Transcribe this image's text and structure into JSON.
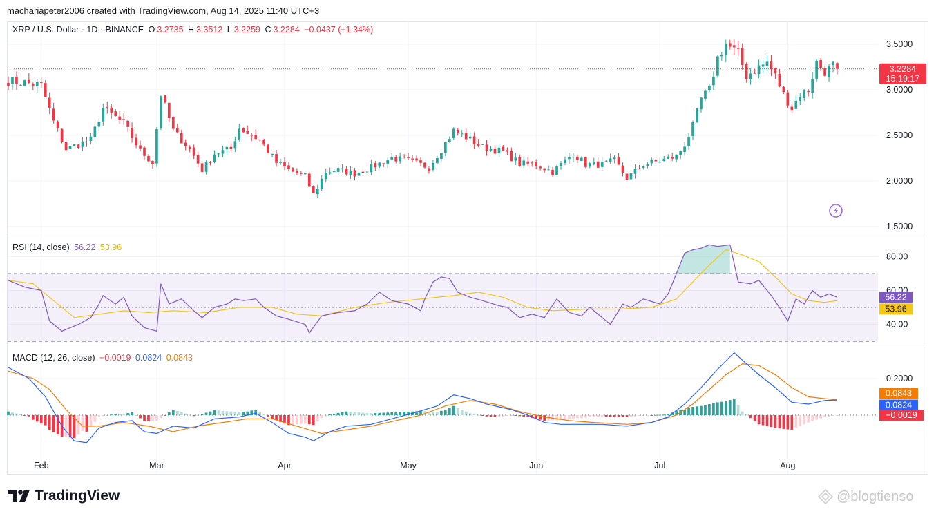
{
  "header": {
    "attribution": "machariapeter2006 created with TradingView.com, Aug 14, 2025 11:40 UTC+3"
  },
  "footer": {
    "brand": "TradingView",
    "watermark": "@blogtienso"
  },
  "colors": {
    "up": "#26a69a",
    "down": "#f23645",
    "rsi": "#7e57c2",
    "rsi_ma": "#f5c518",
    "macd": "#2962ff",
    "signal": "#f57c00"
  },
  "chart_data": [
    {
      "type": "candlestick",
      "legend": {
        "symbol": "XRP / U.S. Dollar · 1D · BINANCE",
        "o_label": "O",
        "o_value": "3.2735",
        "h_label": "H",
        "h_value": "3.3512",
        "l_label": "L",
        "l_value": "3.2259",
        "c_label": "C",
        "c_value": "3.2284",
        "change": "−0.0437 (−1.34%)"
      },
      "last_price_label": "3.2284",
      "countdown_label": "15:19:17",
      "last_price": 3.2284,
      "ylim": [
        1.4,
        3.75
      ],
      "y_ticks": [
        {
          "value": 1.5,
          "label": "1.5000"
        },
        {
          "value": 2.0,
          "label": "2.0000"
        },
        {
          "value": 2.5,
          "label": "2.5000"
        },
        {
          "value": 3.0,
          "label": "3.0000"
        },
        {
          "value": 3.5,
          "label": "3.5000"
        }
      ],
      "x_labels": [
        {
          "day": 8,
          "label": "Feb"
        },
        {
          "day": 36,
          "label": "Mar"
        },
        {
          "day": 67,
          "label": "Apr"
        },
        {
          "day": 97,
          "label": "May"
        },
        {
          "day": 128,
          "label": "Jun"
        },
        {
          "day": 158,
          "label": "Jul"
        },
        {
          "day": 189,
          "label": "Aug"
        }
      ],
      "key_closes": [
        [
          0,
          3.1
        ],
        [
          4,
          3.08
        ],
        [
          8,
          3.05
        ],
        [
          11,
          2.65
        ],
        [
          14,
          2.35
        ],
        [
          20,
          2.45
        ],
        [
          23,
          2.8
        ],
        [
          28,
          2.63
        ],
        [
          32,
          2.33
        ],
        [
          35,
          2.2
        ],
        [
          37,
          2.95
        ],
        [
          40,
          2.55
        ],
        [
          44,
          2.35
        ],
        [
          47,
          2.12
        ],
        [
          50,
          2.3
        ],
        [
          54,
          2.35
        ],
        [
          56,
          2.58
        ],
        [
          61,
          2.45
        ],
        [
          65,
          2.2
        ],
        [
          69,
          2.1
        ],
        [
          72,
          2.05
        ],
        [
          74,
          1.85
        ],
        [
          77,
          2.1
        ],
        [
          80,
          2.12
        ],
        [
          84,
          2.08
        ],
        [
          88,
          2.15
        ],
        [
          93,
          2.25
        ],
        [
          97,
          2.22
        ],
        [
          102,
          2.15
        ],
        [
          105,
          2.35
        ],
        [
          108,
          2.55
        ],
        [
          111,
          2.48
        ],
        [
          115,
          2.37
        ],
        [
          120,
          2.32
        ],
        [
          124,
          2.19
        ],
        [
          128,
          2.18
        ],
        [
          132,
          2.1
        ],
        [
          137,
          2.3
        ],
        [
          140,
          2.18
        ],
        [
          144,
          2.18
        ],
        [
          147,
          2.22
        ],
        [
          150,
          2.03
        ],
        [
          154,
          2.18
        ],
        [
          158,
          2.22
        ],
        [
          162,
          2.27
        ],
        [
          164,
          2.4
        ],
        [
          166,
          2.6
        ],
        [
          168,
          2.9
        ],
        [
          170,
          3.0
        ],
        [
          172,
          3.35
        ],
        [
          174,
          3.5
        ],
        [
          177,
          3.4
        ],
        [
          179,
          3.15
        ],
        [
          182,
          3.25
        ],
        [
          184,
          3.3
        ],
        [
          186,
          3.15
        ],
        [
          188,
          2.95
        ],
        [
          190,
          2.8
        ],
        [
          192,
          2.95
        ],
        [
          194,
          3.0
        ],
        [
          196,
          3.3
        ],
        [
          198,
          3.2
        ],
        [
          200,
          3.27
        ],
        [
          201,
          3.23
        ]
      ]
    },
    {
      "type": "line",
      "legend": {
        "title": "RSI (14, close)",
        "rsi_value": "56.22",
        "ma_value": "53.96"
      },
      "rsi_label": "56.22",
      "ma_label": "53.96",
      "ylim": [
        28,
        92
      ],
      "bands": {
        "upper": 70,
        "middle": 50,
        "lower": 30
      },
      "y_ticks": [
        {
          "value": 40,
          "label": "40.00"
        },
        {
          "value": 60,
          "label": "60.00"
        },
        {
          "value": 80,
          "label": "80.00"
        }
      ],
      "series": [
        {
          "key": "rsi",
          "points": [
            [
              0,
              66
            ],
            [
              4,
              62
            ],
            [
              8,
              60
            ],
            [
              10,
              42
            ],
            [
              13,
              36
            ],
            [
              17,
              40
            ],
            [
              20,
              44
            ],
            [
              22,
              52
            ],
            [
              23,
              57
            ],
            [
              26,
              52
            ],
            [
              28,
              56
            ],
            [
              30,
              45
            ],
            [
              33,
              38
            ],
            [
              36,
              36
            ],
            [
              37,
              64
            ],
            [
              39,
              52
            ],
            [
              42,
              55
            ],
            [
              45,
              48
            ],
            [
              47,
              44
            ],
            [
              50,
              50
            ],
            [
              53,
              52
            ],
            [
              55,
              55
            ],
            [
              57,
              54
            ],
            [
              60,
              55
            ],
            [
              62,
              50
            ],
            [
              65,
              45
            ],
            [
              68,
              43
            ],
            [
              72,
              40
            ],
            [
              73,
              35
            ],
            [
              76,
              45
            ],
            [
              80,
              47
            ],
            [
              84,
              48
            ],
            [
              87,
              52
            ],
            [
              90,
              59
            ],
            [
              93,
              54
            ],
            [
              97,
              52
            ],
            [
              100,
              48
            ],
            [
              101,
              55
            ],
            [
              103,
              65
            ],
            [
              105,
              68
            ],
            [
              107,
              67
            ],
            [
              109,
              59
            ],
            [
              112,
              56
            ],
            [
              115,
              54
            ],
            [
              119,
              51
            ],
            [
              121,
              50
            ],
            [
              124,
              44
            ],
            [
              127,
              46
            ],
            [
              130,
              44
            ],
            [
              133,
              55
            ],
            [
              136,
              47
            ],
            [
              139,
              45
            ],
            [
              141,
              50
            ],
            [
              143,
              46
            ],
            [
              146,
              40
            ],
            [
              149,
              52
            ],
            [
              151,
              50
            ],
            [
              154,
              55
            ],
            [
              158,
              52
            ],
            [
              160,
              58
            ],
            [
              162,
              70
            ],
            [
              164,
              82
            ],
            [
              166,
              84
            ],
            [
              168,
              85
            ],
            [
              170,
              87
            ],
            [
              172,
              86
            ],
            [
              175,
              87
            ],
            [
              177,
              65
            ],
            [
              180,
              64
            ],
            [
              182,
              66
            ],
            [
              185,
              57
            ],
            [
              187,
              50
            ],
            [
              189,
              42
            ],
            [
              191,
              55
            ],
            [
              193,
              52
            ],
            [
              195,
              60
            ],
            [
              197,
              56
            ],
            [
              199,
              58
            ],
            [
              201,
              56
            ]
          ]
        },
        {
          "key": "rsi_ma",
          "points": [
            [
              0,
              66
            ],
            [
              6,
              64
            ],
            [
              10,
              56
            ],
            [
              16,
              44
            ],
            [
              22,
              46
            ],
            [
              28,
              48
            ],
            [
              34,
              47
            ],
            [
              40,
              48
            ],
            [
              48,
              47
            ],
            [
              56,
              50
            ],
            [
              64,
              50
            ],
            [
              70,
              46
            ],
            [
              76,
              45
            ],
            [
              84,
              50
            ],
            [
              92,
              53
            ],
            [
              100,
              55
            ],
            [
              108,
              57
            ],
            [
              114,
              59
            ],
            [
              120,
              56
            ],
            [
              126,
              50
            ],
            [
              132,
              48
            ],
            [
              140,
              49
            ],
            [
              148,
              49
            ],
            [
              156,
              50
            ],
            [
              162,
              55
            ],
            [
              166,
              65
            ],
            [
              170,
              75
            ],
            [
              174,
              84
            ],
            [
              178,
              81
            ],
            [
              182,
              77
            ],
            [
              186,
              68
            ],
            [
              190,
              58
            ],
            [
              194,
              54
            ],
            [
              198,
              53
            ],
            [
              201,
              54
            ]
          ]
        }
      ]
    },
    {
      "type": "line",
      "legend": {
        "title": "MACD (12, 26, close)",
        "hist_value": "−0.0019",
        "macd_value": "0.0824",
        "signal_value": "0.0843"
      },
      "signal_label": "0.0843",
      "macd_label": "0.0824",
      "hist_label": "−0.0019",
      "ylim": [
        -0.32,
        0.38
      ],
      "y_ticks": [
        {
          "value": 0.2,
          "label": "0.2000"
        }
      ],
      "series": [
        {
          "key": "macd",
          "points": [
            [
              0,
              0.26
            ],
            [
              5,
              0.2
            ],
            [
              9,
              0.1
            ],
            [
              13,
              -0.06
            ],
            [
              16,
              -0.14
            ],
            [
              19,
              -0.15
            ],
            [
              22,
              -0.07
            ],
            [
              26,
              -0.04
            ],
            [
              30,
              -0.03
            ],
            [
              33,
              -0.09
            ],
            [
              36,
              -0.1
            ],
            [
              40,
              -0.06
            ],
            [
              45,
              -0.07
            ],
            [
              50,
              -0.02
            ],
            [
              56,
              -0.01
            ],
            [
              60,
              0.01
            ],
            [
              64,
              -0.04
            ],
            [
              68,
              -0.1
            ],
            [
              72,
              -0.12
            ],
            [
              74,
              -0.14
            ],
            [
              78,
              -0.09
            ],
            [
              82,
              -0.06
            ],
            [
              88,
              -0.05
            ],
            [
              93,
              -0.02
            ],
            [
              98,
              0.01
            ],
            [
              104,
              0.05
            ],
            [
              108,
              0.11
            ],
            [
              112,
              0.09
            ],
            [
              116,
              0.06
            ],
            [
              122,
              0.03
            ],
            [
              126,
              0.0
            ],
            [
              130,
              -0.04
            ],
            [
              134,
              -0.05
            ],
            [
              138,
              -0.05
            ],
            [
              144,
              -0.05
            ],
            [
              150,
              -0.06
            ],
            [
              156,
              -0.04
            ],
            [
              160,
              -0.01
            ],
            [
              164,
              0.06
            ],
            [
              168,
              0.15
            ],
            [
              172,
              0.25
            ],
            [
              176,
              0.34
            ],
            [
              178,
              0.3
            ],
            [
              182,
              0.22
            ],
            [
              186,
              0.15
            ],
            [
              190,
              0.07
            ],
            [
              194,
              0.06
            ],
            [
              198,
              0.08
            ],
            [
              201,
              0.0824
            ]
          ]
        },
        {
          "key": "signal",
          "points": [
            [
              0,
              0.24
            ],
            [
              6,
              0.2
            ],
            [
              10,
              0.14
            ],
            [
              14,
              0.03
            ],
            [
              18,
              -0.06
            ],
            [
              22,
              -0.06
            ],
            [
              28,
              -0.04
            ],
            [
              34,
              -0.06
            ],
            [
              40,
              -0.09
            ],
            [
              46,
              -0.06
            ],
            [
              52,
              -0.04
            ],
            [
              58,
              -0.02
            ],
            [
              64,
              -0.02
            ],
            [
              70,
              -0.06
            ],
            [
              76,
              -0.1
            ],
            [
              82,
              -0.08
            ],
            [
              88,
              -0.06
            ],
            [
              94,
              -0.03
            ],
            [
              100,
              0.0
            ],
            [
              106,
              0.05
            ],
            [
              112,
              0.08
            ],
            [
              118,
              0.06
            ],
            [
              124,
              0.02
            ],
            [
              130,
              -0.01
            ],
            [
              136,
              -0.03
            ],
            [
              142,
              -0.04
            ],
            [
              150,
              -0.05
            ],
            [
              156,
              -0.04
            ],
            [
              162,
              0.0
            ],
            [
              166,
              0.06
            ],
            [
              170,
              0.14
            ],
            [
              174,
              0.22
            ],
            [
              178,
              0.28
            ],
            [
              182,
              0.27
            ],
            [
              186,
              0.22
            ],
            [
              190,
              0.15
            ],
            [
              194,
              0.1
            ],
            [
              198,
              0.09
            ],
            [
              201,
              0.0843
            ]
          ]
        }
      ]
    }
  ]
}
